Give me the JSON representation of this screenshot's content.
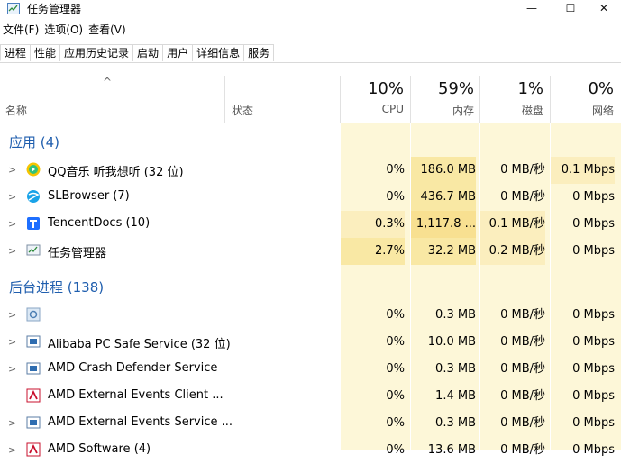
{
  "window": {
    "title": "任务管理器",
    "controls": {
      "minimize": "—",
      "maximize": "☐",
      "close": "✕"
    }
  },
  "menu": [
    "文件(F)",
    "选项(O)",
    "查看(V)"
  ],
  "tabs": [
    "进程",
    "性能",
    "应用历史记录",
    "启动",
    "用户",
    "详细信息",
    "服务"
  ],
  "header": {
    "sort_arrow": "^",
    "name": "名称",
    "status": "状态",
    "columns": [
      {
        "percent": "10%",
        "label": "CPU"
      },
      {
        "percent": "59%",
        "label": "内存"
      },
      {
        "percent": "1%",
        "label": "磁盘"
      },
      {
        "percent": "0%",
        "label": "网络"
      }
    ]
  },
  "groups": {
    "apps": {
      "title": "应用 (4)",
      "rows": [
        {
          "name": "QQ音乐 听我想听 (32 位)",
          "icon": "qqmusic-icon",
          "cpu": "0%",
          "mem": "186.0 MB",
          "disk": "0 MB/秒",
          "net": "0.1 Mbps"
        },
        {
          "name": "SLBrowser (7)",
          "icon": "browser-icon",
          "cpu": "0%",
          "mem": "436.7 MB",
          "disk": "0 MB/秒",
          "net": "0 Mbps"
        },
        {
          "name": "TencentDocs (10)",
          "icon": "docs-icon",
          "cpu": "0.3%",
          "mem": "1,117.8 ...",
          "disk": "0.1 MB/秒",
          "net": "0 Mbps"
        },
        {
          "name": "任务管理器",
          "icon": "taskmgr-icon",
          "cpu": "2.7%",
          "mem": "32.2 MB",
          "disk": "0.2 MB/秒",
          "net": "0 Mbps"
        }
      ]
    },
    "background": {
      "title": "后台进程 (138)",
      "rows": [
        {
          "name": "",
          "icon": "gear-icon",
          "cpu": "0%",
          "mem": "0.3 MB",
          "disk": "0 MB/秒",
          "net": "0 Mbps"
        },
        {
          "name": "Alibaba PC Safe Service (32 位)",
          "icon": "service-icon",
          "cpu": "0%",
          "mem": "10.0 MB",
          "disk": "0 MB/秒",
          "net": "0 Mbps"
        },
        {
          "name": "AMD Crash Defender Service",
          "icon": "service-icon",
          "cpu": "0%",
          "mem": "0.3 MB",
          "disk": "0 MB/秒",
          "net": "0 Mbps"
        },
        {
          "name": "AMD External Events Client ...",
          "icon": "amd-icon",
          "cpu": "0%",
          "mem": "1.4 MB",
          "disk": "0 MB/秒",
          "net": "0 Mbps"
        },
        {
          "name": "AMD External Events Service ...",
          "icon": "service-icon",
          "cpu": "0%",
          "mem": "0.3 MB",
          "disk": "0 MB/秒",
          "net": "0 Mbps"
        },
        {
          "name": "AMD Software (4)",
          "icon": "amd-icon",
          "cpu": "0%",
          "mem": "13.6 MB",
          "disk": "0 MB/秒",
          "net": "0 Mbps"
        }
      ]
    }
  },
  "colors": {
    "group_title": "#1f5eae",
    "heat_light": "#fdf7d8",
    "heat_mid": "#f9e8a4"
  }
}
